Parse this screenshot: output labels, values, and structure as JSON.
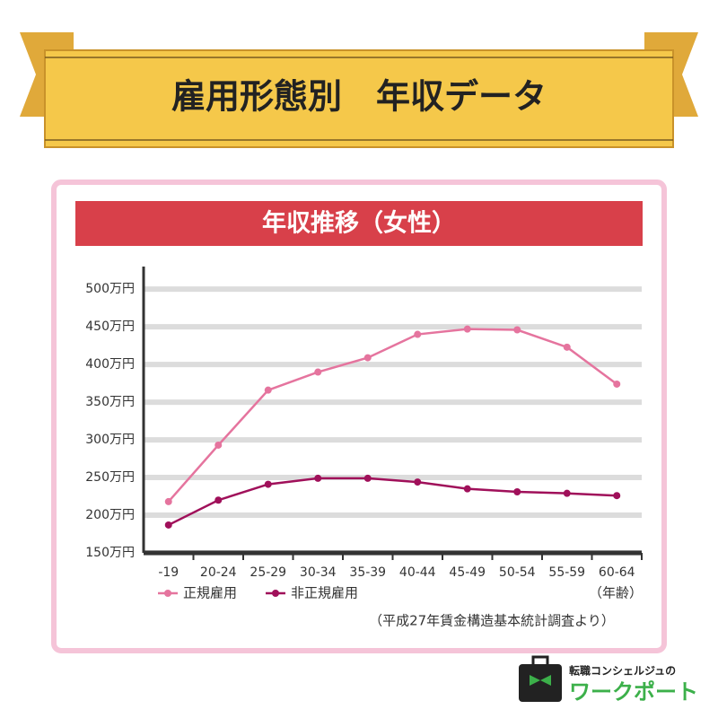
{
  "header": {
    "title": "雇用形態別　年収データ"
  },
  "chart_data": {
    "type": "line",
    "title": "年収推移（女性）",
    "categories": [
      "-19",
      "20-24",
      "25-29",
      "30-34",
      "35-39",
      "40-44",
      "45-49",
      "50-54",
      "55-59",
      "60-64"
    ],
    "series": [
      {
        "name": "正規雇用",
        "color": "#e5749e",
        "values": [
          218,
          293,
          366,
          390,
          409,
          440,
          447,
          446,
          423,
          374
        ]
      },
      {
        "name": "非正規雇用",
        "color": "#a0105a",
        "values": [
          187,
          220,
          241,
          249,
          249,
          244,
          235,
          231,
          229,
          226
        ]
      }
    ],
    "ylim": [
      150,
      530
    ],
    "yticks": [
      {
        "value": 150,
        "label": "150万円"
      },
      {
        "value": 200,
        "label": "200万円"
      },
      {
        "value": 250,
        "label": "250万円"
      },
      {
        "value": 300,
        "label": "300万円"
      },
      {
        "value": 350,
        "label": "350万円"
      },
      {
        "value": 400,
        "label": "400万円"
      },
      {
        "value": 450,
        "label": "450万円"
      },
      {
        "value": 500,
        "label": "500万円"
      }
    ],
    "grid": true,
    "x_label": "（年齢）",
    "source": "（平成27年賃金構造基本統計調査より）"
  },
  "logo": {
    "tagline": "転職コンシェルジュの",
    "name": "ワークポート"
  }
}
